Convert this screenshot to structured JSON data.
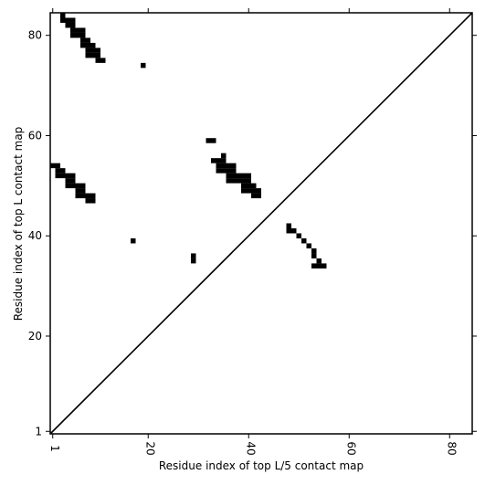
{
  "chart_data": {
    "type": "scatter",
    "marker": "square",
    "color": "#000000",
    "diagonal": true,
    "xlabel": "Residue index of top L/5 contact map",
    "ylabel": "Residue index of top L contact map",
    "xlim": [
      0.5,
      84.5
    ],
    "ylim": [
      0.5,
      84.5
    ],
    "xticks": [
      1,
      20,
      40,
      60,
      80
    ],
    "yticks": [
      1,
      20,
      40,
      60,
      80
    ],
    "x": [
      3,
      3,
      4,
      5,
      4,
      5,
      5,
      6,
      7,
      5,
      6,
      7,
      7,
      8,
      7,
      8,
      9,
      8,
      9,
      10,
      8,
      9,
      10,
      10,
      11,
      19,
      1,
      2,
      2,
      3,
      2,
      3,
      4,
      5,
      4,
      5,
      4,
      5,
      6,
      7,
      6,
      7,
      6,
      7,
      8,
      9,
      8,
      9,
      17,
      29,
      29,
      32,
      33,
      35,
      33,
      34,
      35,
      34,
      35,
      36,
      37,
      34,
      35,
      36,
      37,
      36,
      37,
      38,
      39,
      40,
      36,
      37,
      38,
      39,
      40,
      39,
      40,
      41,
      39,
      40,
      41,
      42,
      41,
      42,
      48,
      48,
      49,
      50,
      51,
      52,
      53,
      53,
      54,
      53,
      54,
      55
    ],
    "y": [
      84,
      83,
      83,
      83,
      82,
      82,
      81,
      81,
      81,
      80,
      80,
      80,
      79,
      79,
      78,
      78,
      78,
      77,
      77,
      77,
      76,
      76,
      76,
      75,
      75,
      74,
      54,
      54,
      53,
      53,
      52,
      52,
      52,
      52,
      51,
      51,
      50,
      50,
      50,
      50,
      49,
      49,
      48,
      48,
      48,
      48,
      47,
      47,
      39,
      35,
      36,
      59,
      59,
      56,
      55,
      55,
      55,
      54,
      54,
      54,
      54,
      53,
      53,
      53,
      53,
      52,
      52,
      52,
      52,
      52,
      51,
      51,
      51,
      51,
      51,
      50,
      50,
      50,
      49,
      49,
      49,
      49,
      48,
      48,
      42,
      41,
      41,
      40,
      39,
      38,
      37,
      36,
      35,
      34,
      34,
      34
    ]
  }
}
